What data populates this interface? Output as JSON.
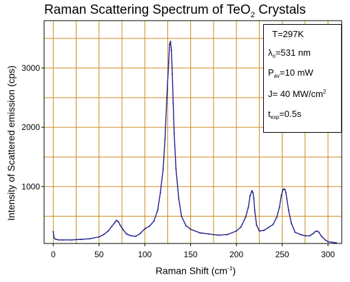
{
  "chart_data": {
    "type": "line",
    "title": {
      "main": "Raman Scattering Spectrum of TeO",
      "sub": "2",
      "tail": " Crystals"
    },
    "xlabel": {
      "main": "Raman Shift (cm",
      "sup": "-1",
      "tail": ")"
    },
    "ylabel": "Intensity of Scattered emission (cps)",
    "xlim": [
      -10,
      315
    ],
    "ylim": [
      40,
      3800
    ],
    "x_ticks": [
      0,
      50,
      100,
      150,
      200,
      250,
      300
    ],
    "y_ticks": [
      1000,
      2000,
      3000
    ],
    "x_grid": [
      0,
      25,
      50,
      75,
      100,
      125,
      150,
      175,
      200,
      225,
      250,
      275,
      300
    ],
    "y_grid": [
      500,
      1000,
      1500,
      2000,
      2500,
      3000,
      3500
    ],
    "grid": true,
    "grid_color": "#c98a1e",
    "series_color": "#1f1f8f",
    "series": [
      {
        "x": [
          0,
          1,
          3,
          6,
          10,
          20,
          30,
          40,
          50,
          55,
          60,
          64,
          67,
          69,
          71,
          73,
          76,
          80,
          85,
          90,
          95,
          100,
          105,
          110,
          114,
          117,
          120,
          122,
          124,
          126,
          127,
          128,
          129,
          130,
          131,
          132,
          134,
          137,
          140,
          145,
          150,
          160,
          170,
          180,
          190,
          200,
          205,
          210,
          213,
          215,
          217,
          218,
          219,
          220,
          222,
          225,
          230,
          235,
          240,
          244,
          247,
          249,
          251,
          252,
          253,
          254,
          255,
          257,
          260,
          264,
          270,
          275,
          280,
          284,
          286,
          288,
          290,
          293,
          297,
          300,
          305,
          309
        ],
        "y": [
          240,
          130,
          110,
          100,
          100,
          100,
          110,
          120,
          150,
          190,
          250,
          330,
          390,
          430,
          410,
          350,
          280,
          200,
          170,
          160,
          210,
          290,
          330,
          420,
          600,
          900,
          1300,
          1800,
          2500,
          3100,
          3400,
          3450,
          3300,
          2900,
          2400,
          1900,
          1300,
          800,
          500,
          340,
          280,
          220,
          200,
          180,
          190,
          250,
          320,
          480,
          650,
          850,
          930,
          900,
          800,
          600,
          350,
          250,
          260,
          310,
          360,
          480,
          650,
          850,
          950,
          960,
          950,
          900,
          800,
          600,
          380,
          230,
          190,
          170,
          170,
          210,
          240,
          250,
          230,
          160,
          100,
          70,
          60,
          50
        ]
      }
    ]
  },
  "info_box": {
    "temperature": "T=297K",
    "wavelength": {
      "symbol": "λ",
      "sub": "o",
      "value": "=531 nm"
    },
    "power": {
      "symbol": "P",
      "sub": "av",
      "value": "=10 mW"
    },
    "intensity": {
      "text": "J= 40 MW/cm",
      "sup": "2"
    },
    "exposure": {
      "symbol": "t",
      "sub": "exp",
      "value": "=0.5s"
    }
  }
}
